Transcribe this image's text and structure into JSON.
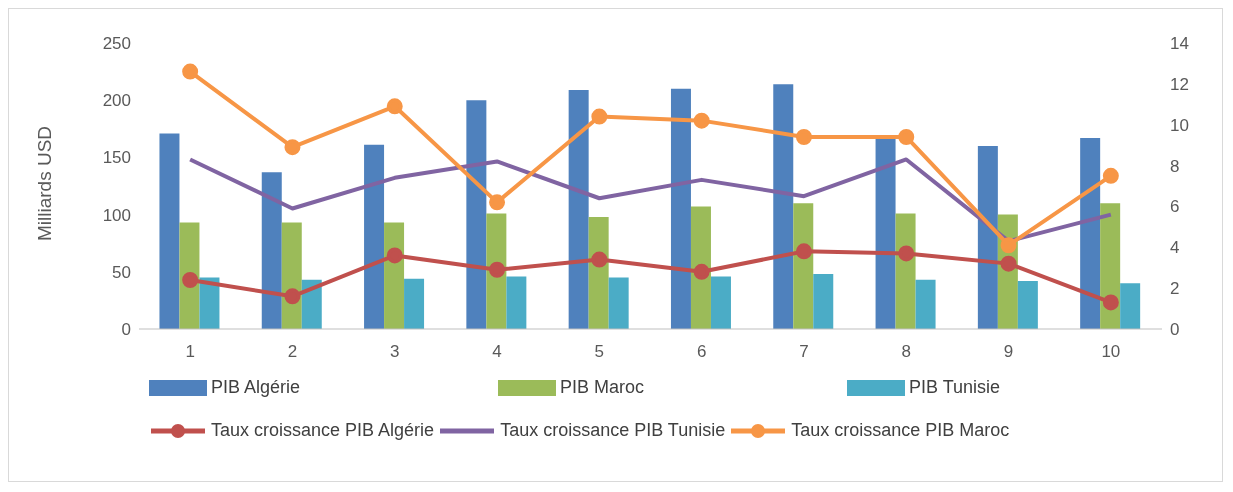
{
  "chart_data": {
    "type": "bar",
    "ylabel": "Milliards USD",
    "categories": [
      "1",
      "2",
      "3",
      "4",
      "5",
      "6",
      "7",
      "8",
      "9",
      "10"
    ],
    "series": [
      {
        "name": "PIB Algérie",
        "color": "#4f81bd",
        "values": [
          171,
          137,
          161,
          200,
          209,
          210,
          214,
          168,
          160,
          167
        ]
      },
      {
        "name": "PIB Maroc",
        "color": "#9bbb59",
        "values": [
          93,
          93,
          93,
          101,
          98,
          107,
          110,
          101,
          100,
          110
        ]
      },
      {
        "name": "PIB Tunisie",
        "color": "#4bacc6",
        "values": [
          45,
          43,
          44,
          46,
          45,
          46,
          48,
          43,
          42,
          40
        ]
      },
      {
        "name": "Taux croissance PIB Algérie",
        "type": "line",
        "axis": "y2",
        "marker": "circle",
        "color": "#c0504d",
        "values": [
          2.4,
          1.6,
          3.6,
          2.9,
          3.4,
          2.8,
          3.8,
          3.7,
          3.2,
          1.3
        ]
      },
      {
        "name": "Taux croissance PIB Tunisie",
        "type": "line",
        "axis": "y2",
        "marker": "none",
        "color": "#8064a2",
        "values": [
          8.3,
          5.9,
          7.4,
          8.2,
          6.4,
          7.3,
          6.5,
          8.3,
          4.3,
          5.6
        ]
      },
      {
        "name": "Taux croissance PIB Maroc",
        "type": "line",
        "axis": "y2",
        "marker": "circle",
        "color": "#f79646",
        "values": [
          12.6,
          8.9,
          10.9,
          6.2,
          10.4,
          10.2,
          9.4,
          9.4,
          4.1,
          7.5
        ]
      }
    ],
    "ylim": [
      0,
      250
    ],
    "yticks": [
      0,
      50,
      100,
      150,
      200,
      250
    ],
    "y2lim": [
      0,
      14
    ],
    "y2ticks": [
      0,
      2,
      4,
      6,
      8,
      10,
      12,
      14
    ],
    "grid": false,
    "legend": "bottom"
  }
}
